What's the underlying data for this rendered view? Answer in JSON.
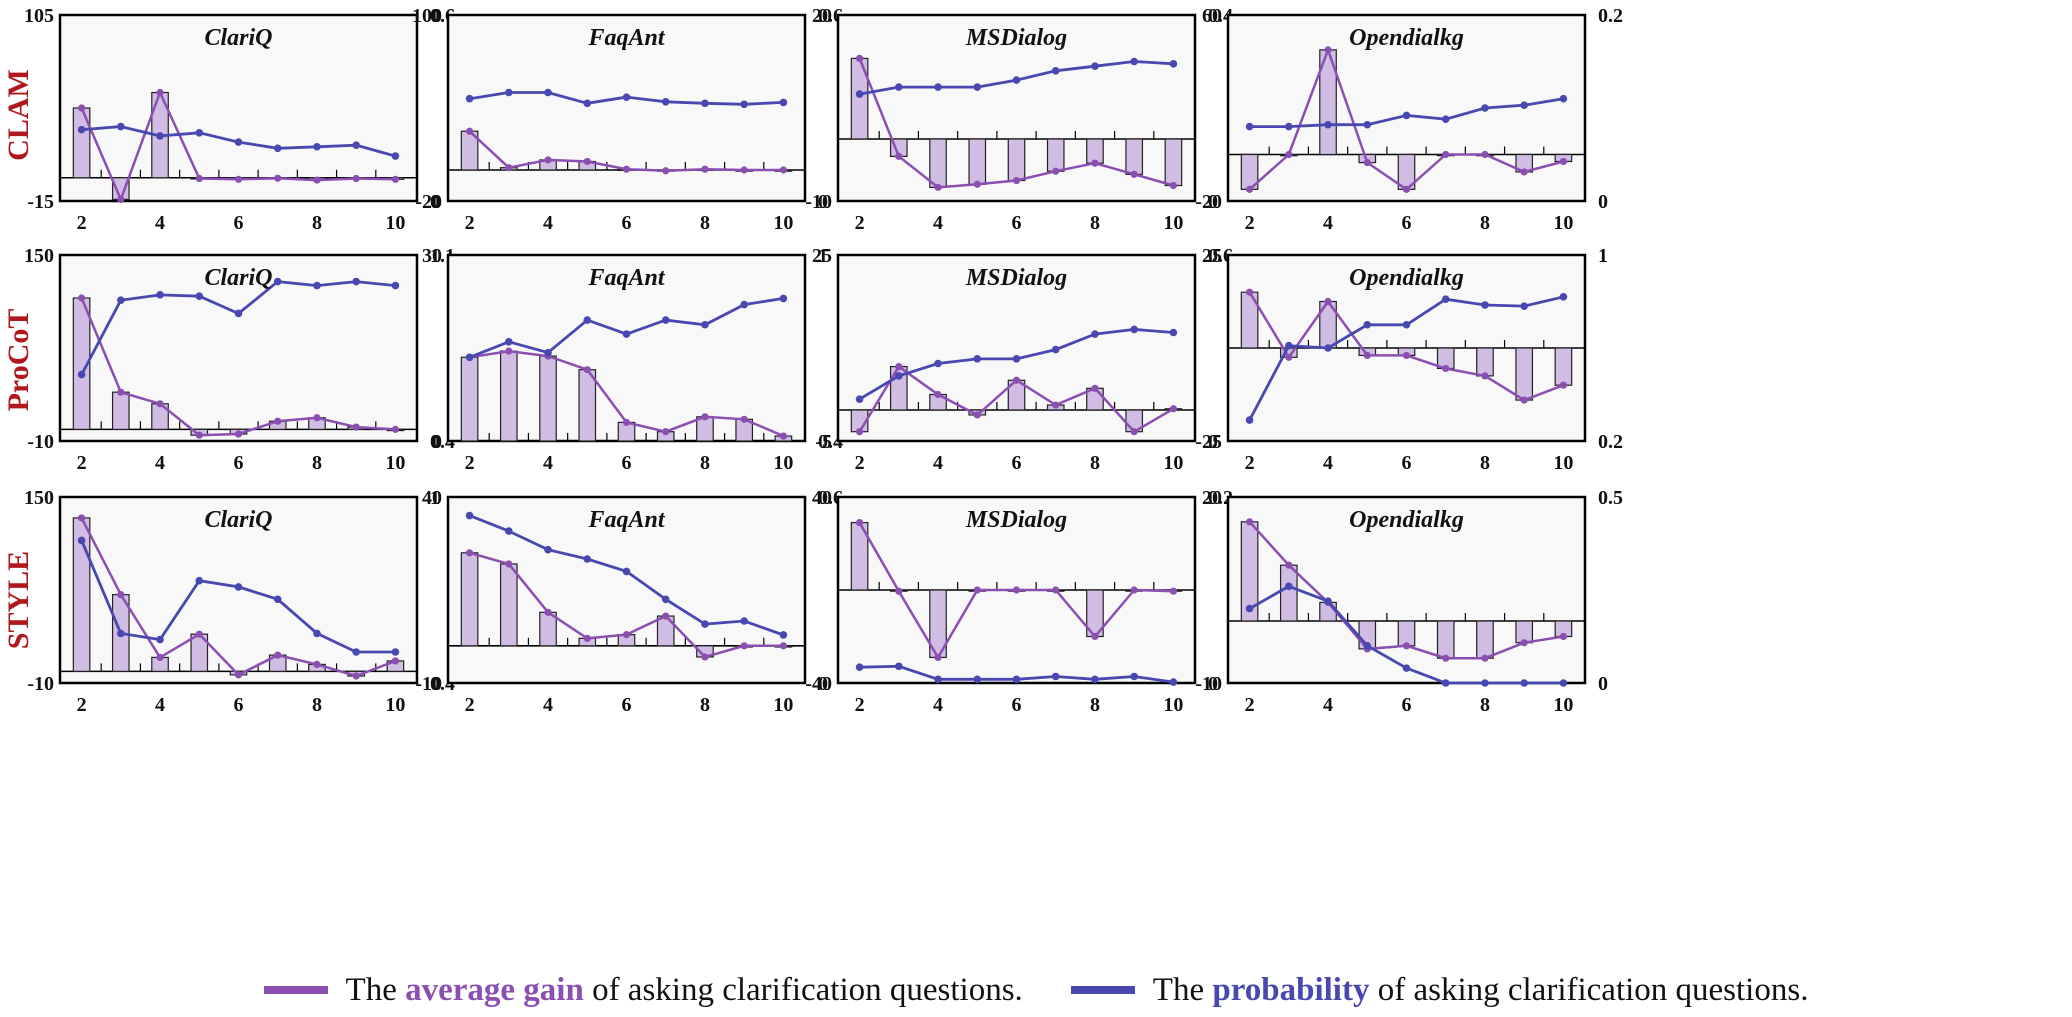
{
  "legend": {
    "gain": {
      "pre": "The ",
      "highlight": "average gain",
      "post": " of asking clarification questions."
    },
    "prob": {
      "pre": "The ",
      "highlight": "probability",
      "post": " of asking clarification questions."
    }
  },
  "colors": {
    "gain_line": "#8a4fb0",
    "gain_bar": "#d1bce3",
    "prob_line": "#4848b0",
    "row_label": "#b0181c",
    "panel_bg": "#f8f8f8"
  },
  "row_labels": [
    "CLAM",
    "ProCoT",
    "STYLE"
  ],
  "chart_data": [
    {
      "type": "bar+line",
      "method": "CLAM",
      "title": "ClariQ",
      "x": [
        2,
        3,
        4,
        5,
        6,
        7,
        8,
        9,
        10
      ],
      "left_axis": {
        "ylim": [
          -15,
          105
        ],
        "ticks": [
          "105",
          "-15"
        ]
      },
      "right_axis": {
        "ylim": [
          0,
          0.6
        ],
        "ticks": [
          "0.6",
          "0"
        ]
      },
      "series": [
        {
          "name": "average gain",
          "axis": "left",
          "values": [
            45,
            -14,
            55,
            -0.5,
            -1,
            -0.3,
            -1.5,
            -0.5,
            -1
          ]
        },
        {
          "name": "probability",
          "axis": "right",
          "values": [
            0.23,
            0.24,
            0.21,
            0.22,
            0.19,
            0.17,
            0.175,
            0.18,
            0.145
          ]
        }
      ]
    },
    {
      "type": "bar+line",
      "method": "CLAM",
      "title": "FaqAnt",
      "x": [
        2,
        3,
        4,
        5,
        6,
        7,
        8,
        9,
        10
      ],
      "left_axis": {
        "ylim": [
          -20,
          100
        ],
        "ticks": [
          "100",
          "-20"
        ]
      },
      "right_axis": {
        "ylim": [
          0,
          0.6
        ],
        "ticks": [
          "0.6",
          "0"
        ]
      },
      "series": [
        {
          "name": "average gain",
          "axis": "left",
          "values": [
            25,
            1.5,
            6.5,
            5.5,
            0.5,
            -0.5,
            0.5,
            0,
            0
          ]
        },
        {
          "name": "probability",
          "axis": "right",
          "values": [
            0.33,
            0.35,
            0.35,
            0.315,
            0.335,
            0.32,
            0.315,
            0.312,
            0.318
          ]
        }
      ]
    },
    {
      "type": "bar+line",
      "method": "CLAM",
      "title": "MSDialog",
      "x": [
        2,
        3,
        4,
        5,
        6,
        7,
        8,
        9,
        10
      ],
      "left_axis": {
        "ylim": [
          -10,
          20
        ],
        "ticks": [
          "20",
          "-10"
        ]
      },
      "right_axis": {
        "ylim": [
          0,
          0.4
        ],
        "ticks": [
          "0.4",
          "0"
        ]
      },
      "series": [
        {
          "name": "average gain",
          "axis": "left",
          "values": [
            13,
            -2.8,
            -7.8,
            -7.3,
            -6.7,
            -5.2,
            -3.9,
            -5.7,
            -7.5
          ]
        },
        {
          "name": "probability",
          "axis": "right",
          "values": [
            0.23,
            0.245,
            0.245,
            0.245,
            0.26,
            0.28,
            0.29,
            0.3,
            0.295
          ]
        }
      ]
    },
    {
      "type": "bar+line",
      "method": "CLAM",
      "title": "Opendialkg",
      "x": [
        2,
        3,
        4,
        5,
        6,
        7,
        8,
        9,
        10
      ],
      "left_axis": {
        "ylim": [
          -20,
          60
        ],
        "ticks": [
          "60",
          "-20"
        ]
      },
      "right_axis": {
        "ylim": [
          0,
          0.2
        ],
        "ticks": [
          "0.2",
          "0"
        ]
      },
      "series": [
        {
          "name": "average gain",
          "axis": "left",
          "values": [
            -15,
            0,
            45,
            -3.5,
            -15,
            0,
            0,
            -7.5,
            -3
          ]
        },
        {
          "name": "probability",
          "axis": "right",
          "values": [
            0.08,
            0.08,
            0.082,
            0.082,
            0.092,
            0.088,
            0.1,
            0.103,
            0.11
          ]
        }
      ]
    },
    {
      "type": "bar+line",
      "method": "ProCoT",
      "title": "ClariQ",
      "x": [
        2,
        3,
        4,
        5,
        6,
        7,
        8,
        9,
        10
      ],
      "left_axis": {
        "ylim": [
          -10,
          150
        ],
        "ticks": [
          "150",
          "-10"
        ]
      },
      "right_axis": {
        "ylim": [
          0.4,
          1.1
        ],
        "ticks": [
          "1.1",
          "0.4"
        ]
      },
      "series": [
        {
          "name": "average gain",
          "axis": "left",
          "values": [
            113,
            32,
            22,
            -5,
            -4,
            7,
            10,
            2,
            0
          ]
        },
        {
          "name": "probability",
          "axis": "right",
          "values": [
            0.65,
            0.93,
            0.95,
            0.945,
            0.88,
            1.0,
            0.985,
            1.0,
            0.985
          ]
        }
      ]
    },
    {
      "type": "bar+line",
      "method": "ProCoT",
      "title": "FaqAnt",
      "x": [
        2,
        3,
        4,
        5,
        6,
        7,
        8,
        9,
        10
      ],
      "left_axis": {
        "ylim": [
          0,
          30
        ],
        "ticks": [
          "30",
          "0"
        ]
      },
      "right_axis": {
        "ylim": [
          0.4,
          1
        ],
        "ticks": [
          "1",
          "0.4"
        ]
      },
      "series": [
        {
          "name": "average gain",
          "axis": "left",
          "values": [
            13.5,
            14.5,
            13.7,
            11.5,
            3,
            1.5,
            3.9,
            3.5,
            0.8
          ]
        },
        {
          "name": "probability",
          "axis": "right",
          "values": [
            0.67,
            0.72,
            0.685,
            0.79,
            0.745,
            0.79,
            0.775,
            0.84,
            0.86
          ]
        }
      ]
    },
    {
      "type": "bar+line",
      "method": "ProCoT",
      "title": "MSDialog",
      "x": [
        2,
        3,
        4,
        5,
        6,
        7,
        8,
        9,
        10
      ],
      "left_axis": {
        "ylim": [
          -5,
          25
        ],
        "ticks": [
          "25",
          "-5"
        ]
      },
      "right_axis": {
        "ylim": [
          0,
          0.6
        ],
        "ticks": [
          "0.6",
          "0"
        ]
      },
      "series": [
        {
          "name": "average gain",
          "axis": "left",
          "values": [
            -3.5,
            7,
            2.5,
            -0.8,
            4.8,
            0.8,
            3.5,
            -3.5,
            0.2
          ]
        },
        {
          "name": "probability",
          "axis": "right",
          "values": [
            0.135,
            0.21,
            0.25,
            0.265,
            0.265,
            0.295,
            0.345,
            0.36,
            0.35
          ]
        }
      ]
    },
    {
      "type": "bar+line",
      "method": "ProCoT",
      "title": "Opendialkg",
      "x": [
        2,
        3,
        4,
        5,
        6,
        7,
        8,
        9,
        10
      ],
      "left_axis": {
        "ylim": [
          -25,
          25
        ],
        "ticks": [
          "25",
          "-25"
        ]
      },
      "right_axis": {
        "ylim": [
          0.2,
          1
        ],
        "ticks": [
          "1",
          "0.2"
        ]
      },
      "series": [
        {
          "name": "average gain",
          "axis": "left",
          "values": [
            15,
            -2.5,
            12.5,
            -2,
            -2,
            -5.5,
            -7.5,
            -14,
            -10
          ]
        },
        {
          "name": "probability",
          "axis": "right",
          "values": [
            0.29,
            0.61,
            0.6,
            0.7,
            0.7,
            0.81,
            0.785,
            0.78,
            0.82
          ]
        }
      ]
    },
    {
      "type": "bar+line",
      "method": "STYLE",
      "title": "ClariQ",
      "x": [
        2,
        3,
        4,
        5,
        6,
        7,
        8,
        9,
        10
      ],
      "left_axis": {
        "ylim": [
          -10,
          150
        ],
        "ticks": [
          "150",
          "-10"
        ]
      },
      "right_axis": {
        "ylim": [
          0.4,
          1
        ],
        "ticks": [
          "1",
          "0.4"
        ]
      },
      "series": [
        {
          "name": "average gain",
          "axis": "left",
          "values": [
            132,
            66,
            12,
            32,
            -3,
            14,
            6,
            -4,
            9
          ]
        },
        {
          "name": "probability",
          "axis": "right",
          "values": [
            0.86,
            0.56,
            0.54,
            0.73,
            0.71,
            0.67,
            0.56,
            0.5,
            0.5
          ]
        }
      ]
    },
    {
      "type": "bar+line",
      "method": "STYLE",
      "title": "FaqAnt",
      "x": [
        2,
        3,
        4,
        5,
        6,
        7,
        8,
        9,
        10
      ],
      "left_axis": {
        "ylim": [
          -10,
          40
        ],
        "ticks": [
          "40",
          "-10"
        ]
      },
      "right_axis": {
        "ylim": [
          0,
          0.6
        ],
        "ticks": [
          "0.6",
          "0"
        ]
      },
      "series": [
        {
          "name": "average gain",
          "axis": "left",
          "values": [
            25,
            22,
            9,
            2,
            3,
            8,
            -3,
            0,
            0
          ]
        },
        {
          "name": "probability",
          "axis": "right",
          "values": [
            0.54,
            0.49,
            0.43,
            0.4,
            0.36,
            0.27,
            0.19,
            0.2,
            0.155
          ]
        }
      ]
    },
    {
      "type": "bar+line",
      "method": "STYLE",
      "title": "MSDialog",
      "x": [
        2,
        3,
        4,
        5,
        6,
        7,
        8,
        9,
        10
      ],
      "left_axis": {
        "ylim": [
          -40,
          40
        ],
        "ticks": [
          "40",
          "-40"
        ]
      },
      "right_axis": {
        "ylim": [
          0,
          0.2
        ],
        "ticks": [
          "0.2",
          "0"
        ]
      },
      "series": [
        {
          "name": "average gain",
          "axis": "left",
          "values": [
            29,
            -0.5,
            -29,
            0,
            0,
            0,
            -20,
            0,
            -0.5
          ]
        },
        {
          "name": "probability",
          "axis": "right",
          "values": [
            0.017,
            0.018,
            0.004,
            0.004,
            0.004,
            0.007,
            0.004,
            0.007,
            0.001
          ]
        }
      ]
    },
    {
      "type": "bar+line",
      "method": "STYLE",
      "title": "Opendialkg",
      "x": [
        2,
        3,
        4,
        5,
        6,
        7,
        8,
        9,
        10
      ],
      "left_axis": {
        "ylim": [
          -10,
          20
        ],
        "ticks": [
          "20",
          "-10"
        ]
      },
      "right_axis": {
        "ylim": [
          0,
          0.5
        ],
        "ticks": [
          "0.5",
          "0"
        ]
      },
      "series": [
        {
          "name": "average gain",
          "axis": "left",
          "values": [
            16,
            9,
            3,
            -4.5,
            -4,
            -6,
            -6,
            -3.5,
            -2.5
          ]
        },
        {
          "name": "probability",
          "axis": "right",
          "values": [
            0.2,
            0.26,
            0.22,
            0.1,
            0.04,
            0,
            0,
            0,
            0
          ]
        }
      ]
    }
  ]
}
